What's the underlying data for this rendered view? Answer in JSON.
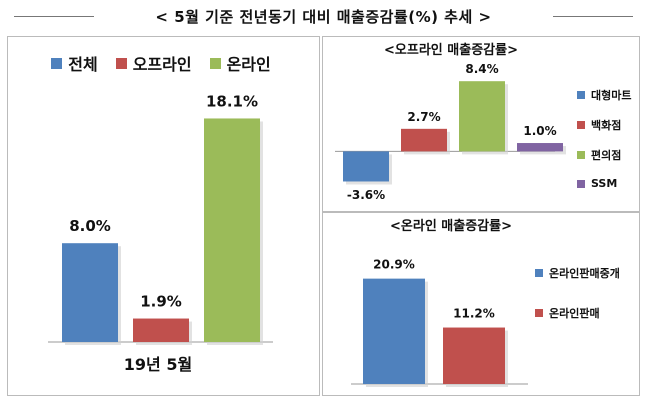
{
  "header": {
    "title": "< 5월 기준 전년동기 대비 매출증감률(%) 추세 >"
  },
  "chart_data": [
    {
      "type": "bar",
      "title": "",
      "xlabel": "19년 5월",
      "categories": [
        "전체",
        "오프라인",
        "온라인"
      ],
      "values": [
        8.0,
        1.9,
        18.1
      ],
      "labels": [
        "8.0%",
        "1.9%",
        "18.1%"
      ],
      "colors": [
        "#4f81bd",
        "#c0504d",
        "#9bbb59"
      ],
      "legend_position": "top",
      "ylim": [
        0,
        20
      ]
    },
    {
      "type": "bar",
      "title": "<오프라인 매출증감률>",
      "categories": [
        "대형마트",
        "백화점",
        "편의점",
        "SSM"
      ],
      "values": [
        -3.6,
        2.7,
        8.4,
        1.0
      ],
      "labels": [
        "-3.6%",
        "2.7%",
        "8.4%",
        "1.0%"
      ],
      "colors": [
        "#4f81bd",
        "#c0504d",
        "#9bbb59",
        "#8064a2"
      ],
      "legend_position": "right",
      "ylim": [
        -4.5,
        9.5
      ]
    },
    {
      "type": "bar",
      "title": "<온라인 매출증감률>",
      "categories": [
        "온라인판매중개",
        "온라인판매"
      ],
      "values": [
        20.9,
        11.2
      ],
      "labels": [
        "20.9%",
        "11.2%"
      ],
      "colors": [
        "#4f81bd",
        "#c0504d"
      ],
      "legend_position": "right",
      "ylim": [
        0,
        24
      ]
    }
  ]
}
